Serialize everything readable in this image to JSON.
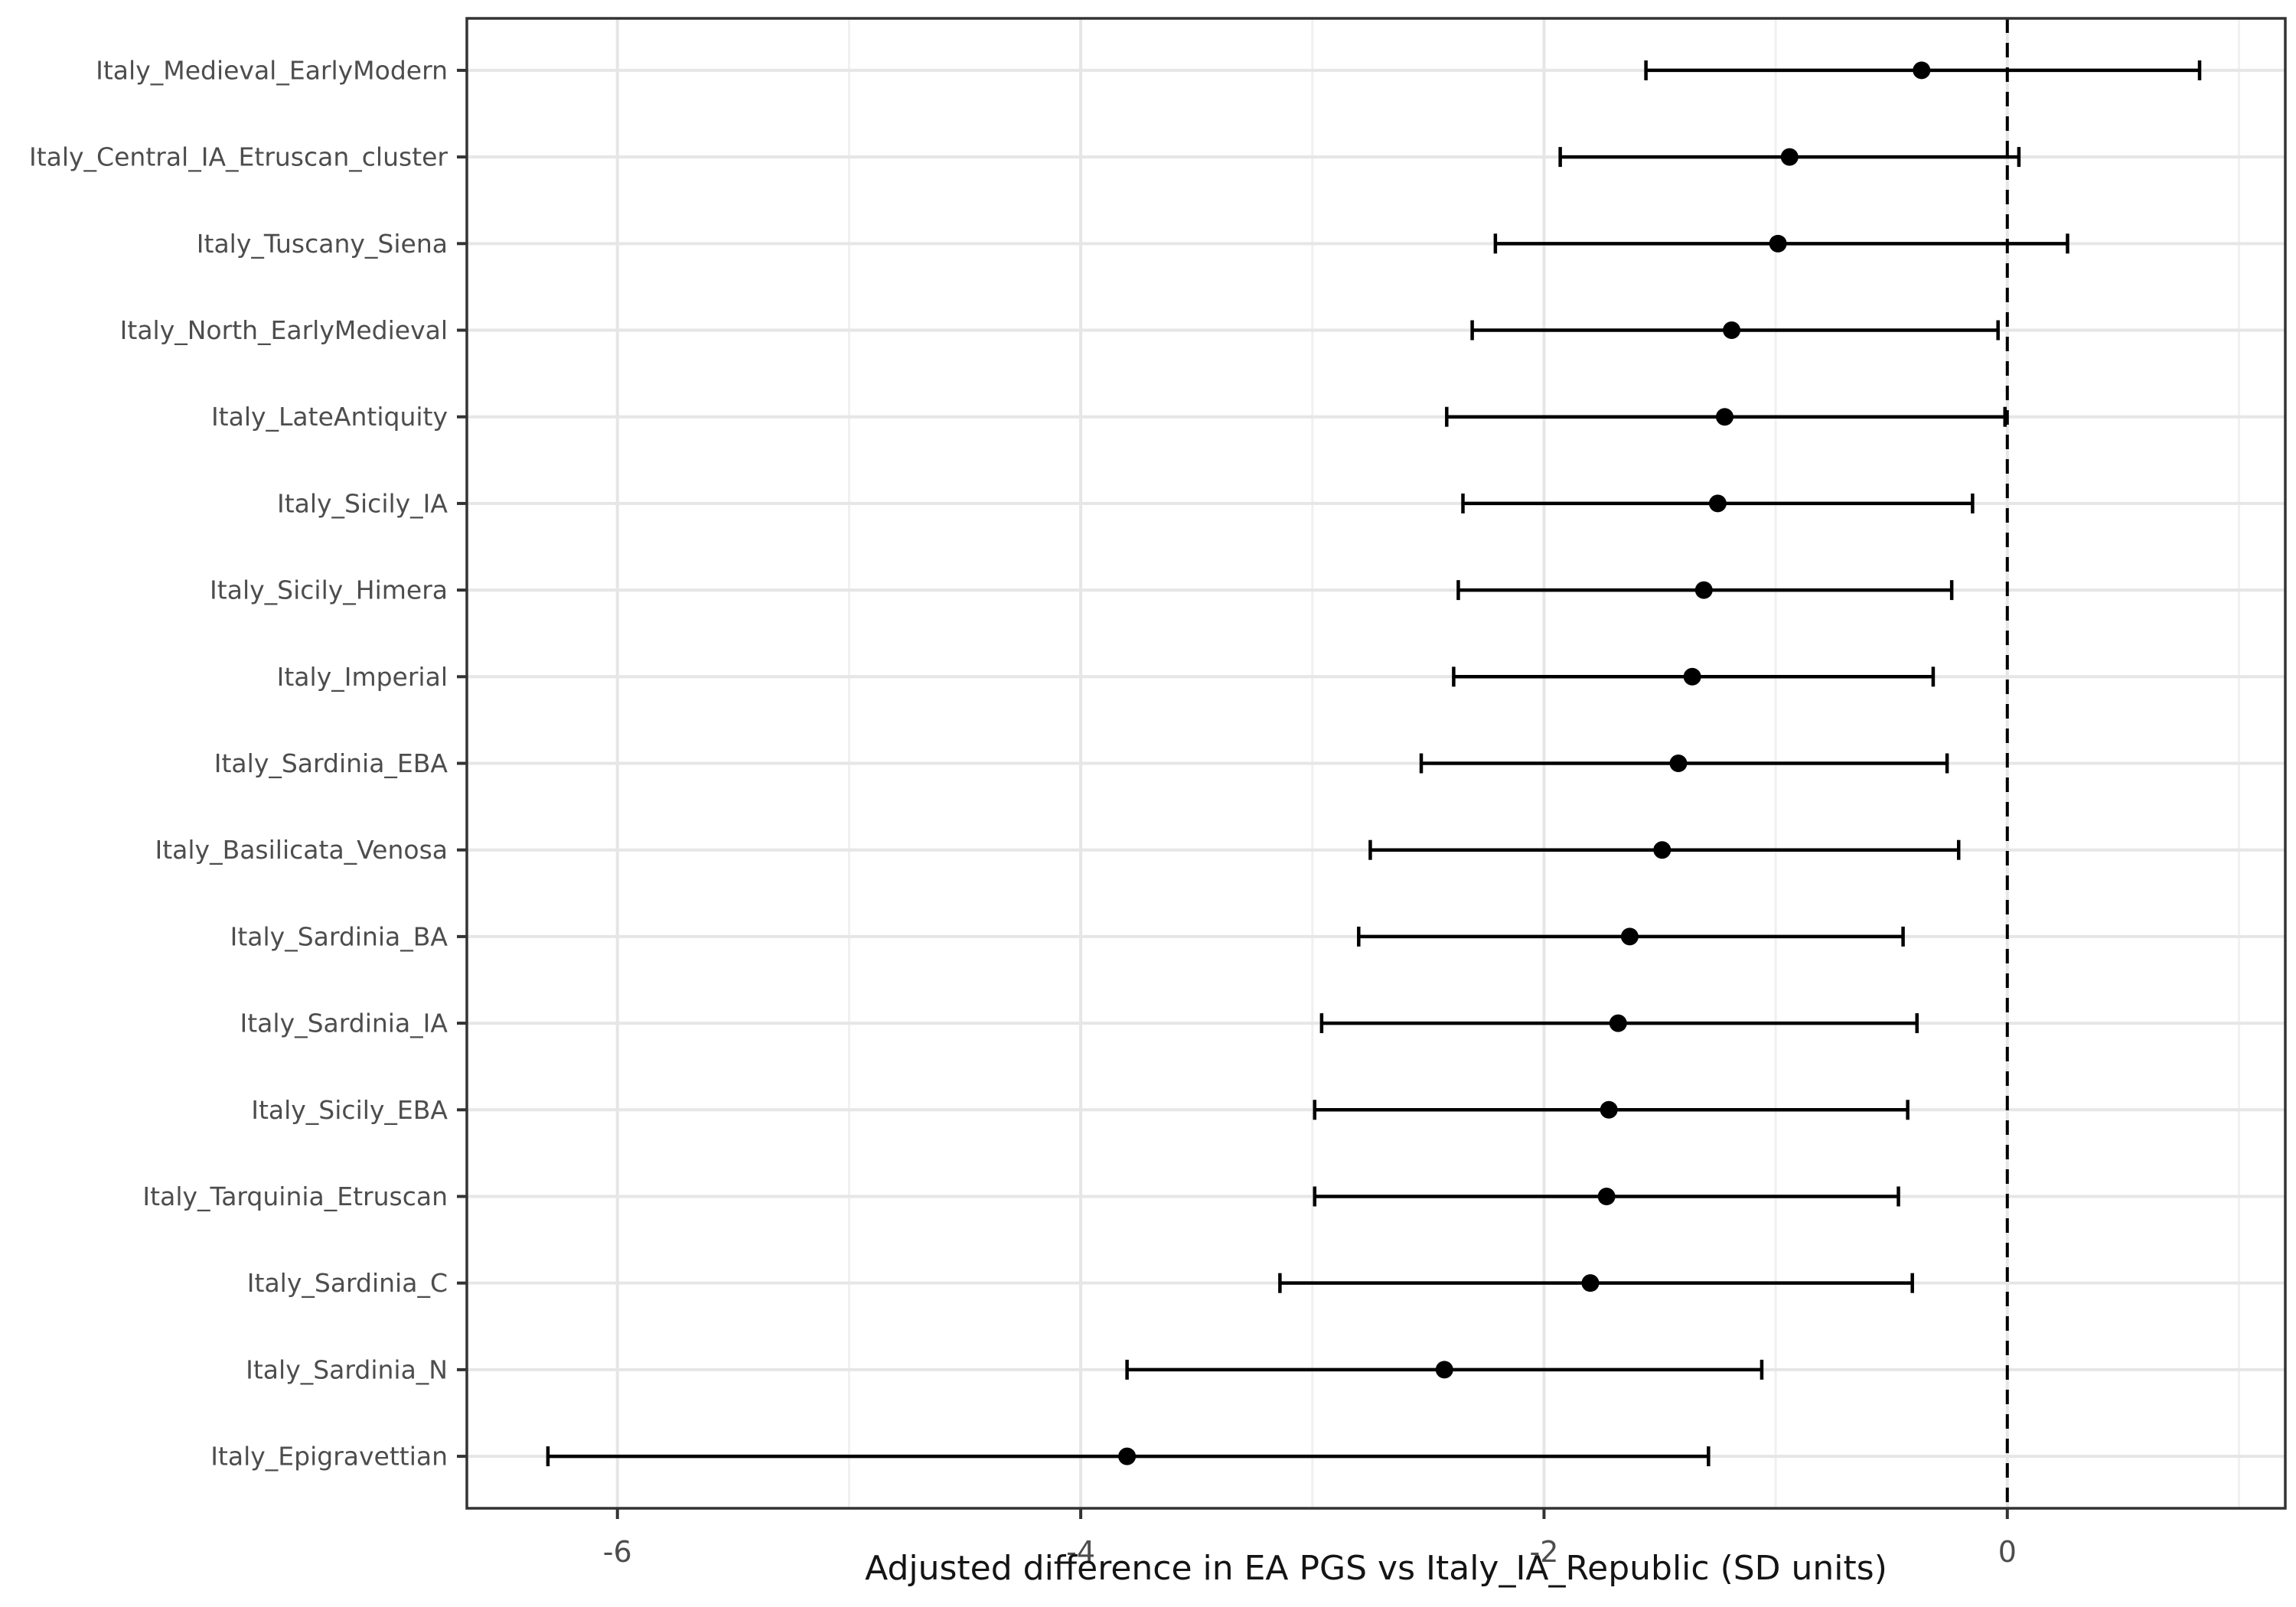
{
  "chart_data": {
    "type": "scatter",
    "subtype": "horizontal-dot-whisker-forest-plot",
    "title": "",
    "xlabel": "Adjusted difference in EA PGS vs Italy_IA_Republic (SD units)",
    "ylabel": "",
    "xlim": [
      -6.65,
      1.2
    ],
    "x_major_ticks": [
      -6,
      -4,
      -2,
      0
    ],
    "x_minor_gridlines": [
      -5,
      -3,
      -1,
      1
    ],
    "reference_line_x": 0,
    "reference_line_style": "dashed",
    "grid": "major-and-minor-on",
    "legend": "none",
    "categories": [
      "Italy_Medieval_EarlyModern",
      "Italy_Central_IA_Etruscan_cluster",
      "Italy_Tuscany_Siena",
      "Italy_North_EarlyMedieval",
      "Italy_LateAntiquity",
      "Italy_Sicily_IA",
      "Italy_Sicily_Himera",
      "Italy_Imperial",
      "Italy_Sardinia_EBA",
      "Italy_Basilicata_Venosa",
      "Italy_Sardinia_BA",
      "Italy_Sardinia_IA",
      "Italy_Sicily_EBA",
      "Italy_Tarquinia_Etruscan",
      "Italy_Sardinia_C",
      "Italy_Sardinia_N",
      "Italy_Epigravettian"
    ],
    "series": [
      {
        "name": "estimate",
        "values": [
          -0.37,
          -0.94,
          -0.99,
          -1.19,
          -1.22,
          -1.25,
          -1.31,
          -1.36,
          -1.42,
          -1.49,
          -1.63,
          -1.68,
          -1.72,
          -1.73,
          -1.8,
          -2.43,
          -3.8
        ]
      },
      {
        "name": "ci_low",
        "values": [
          -1.56,
          -1.93,
          -2.21,
          -2.31,
          -2.42,
          -2.35,
          -2.37,
          -2.39,
          -2.53,
          -2.75,
          -2.8,
          -2.96,
          -2.99,
          -2.99,
          -3.14,
          -3.8,
          -6.3
        ]
      },
      {
        "name": "ci_high",
        "values": [
          0.83,
          0.05,
          0.26,
          -0.04,
          -0.01,
          -0.15,
          -0.24,
          -0.32,
          -0.26,
          -0.21,
          -0.45,
          -0.39,
          -0.43,
          -0.47,
          -0.41,
          -1.06,
          -1.29
        ]
      }
    ]
  },
  "style": {
    "background": "#ffffff",
    "panel_background": "#ffffff",
    "panel_border": "#333333",
    "grid_major": "#e6e6e6",
    "grid_minor": "#f0f0f0",
    "geom_color": "#000000",
    "axis_tick_color": "#333333",
    "tick_label_color": "#4d4d4d",
    "axis_title_color": "#141414"
  }
}
